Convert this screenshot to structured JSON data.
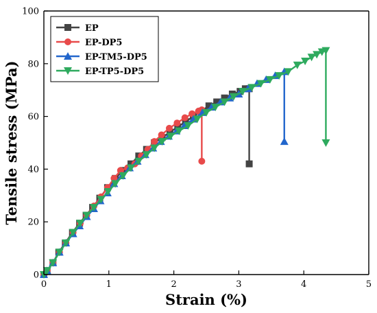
{
  "chart_data": {
    "type": "line",
    "xlabel": "Strain (%)",
    "ylabel": "Tensile stress (MPa)",
    "xlim": [
      0,
      5
    ],
    "ylim": [
      0,
      100
    ],
    "xticks": [
      "0",
      "1",
      "2",
      "3",
      "4",
      "5"
    ],
    "yticks": [
      "0",
      "20",
      "40",
      "60",
      "80",
      "100"
    ],
    "legend_position": "top-left",
    "grid": false,
    "series": [
      {
        "name": "EP",
        "color": "#444444",
        "marker": "square",
        "x": [
          0.0,
          0.05,
          0.14,
          0.23,
          0.33,
          0.44,
          0.55,
          0.65,
          0.75,
          0.86,
          0.98,
          1.1,
          1.22,
          1.34,
          1.46,
          1.58,
          1.7,
          1.82,
          1.94,
          2.06,
          2.18,
          2.3,
          2.42,
          2.54,
          2.66,
          2.78,
          2.9,
          3.02,
          3.1,
          3.16,
          3.16
        ],
        "y": [
          0,
          1.5,
          4.5,
          8.5,
          12,
          16,
          19.5,
          22.5,
          25.5,
          29,
          33,
          36.5,
          39.5,
          42,
          45,
          47.5,
          50,
          52,
          54,
          56,
          58,
          60,
          62,
          64,
          65.5,
          67,
          68.5,
          69.5,
          70.5,
          70.5,
          42
        ]
      },
      {
        "name": "EP-DP5",
        "color": "#e84a4a",
        "marker": "circle",
        "x": [
          0.0,
          0.05,
          0.14,
          0.24,
          0.34,
          0.45,
          0.56,
          0.66,
          0.77,
          0.88,
          0.98,
          1.08,
          1.18,
          1.29,
          1.4,
          1.5,
          1.6,
          1.7,
          1.81,
          1.93,
          2.05,
          2.17,
          2.28,
          2.38,
          2.43,
          2.43
        ],
        "y": [
          0,
          1.5,
          4.5,
          8.5,
          12,
          16,
          19.5,
          22.5,
          26,
          29.5,
          33,
          36.5,
          39.5,
          40.5,
          42,
          45,
          47.5,
          50.5,
          53,
          55.5,
          57.5,
          59.5,
          61,
          62,
          62.5,
          43
        ]
      },
      {
        "name": "EP-TM5-DP5",
        "color": "#2266cc",
        "marker": "triangle-up",
        "x": [
          0.0,
          0.05,
          0.14,
          0.24,
          0.34,
          0.45,
          0.55,
          0.66,
          0.77,
          0.87,
          0.98,
          1.08,
          1.2,
          1.32,
          1.44,
          1.56,
          1.68,
          1.8,
          1.92,
          2.04,
          2.16,
          2.3,
          2.44,
          2.58,
          2.72,
          2.86,
          3.0,
          3.14,
          3.28,
          3.42,
          3.56,
          3.7,
          3.7
        ],
        "y": [
          0,
          1.5,
          4.5,
          8.5,
          12,
          15.5,
          18.5,
          22,
          25,
          28,
          31,
          34.5,
          37.5,
          40.5,
          43,
          45.5,
          48,
          50.5,
          52.5,
          54.5,
          56.5,
          59,
          61.5,
          63.5,
          65.5,
          67,
          68.5,
          70.5,
          72.5,
          74,
          75.5,
          77,
          50.5
        ]
      },
      {
        "name": "EP-TP5-DP5",
        "color": "#2eaa5e",
        "marker": "triangle-down",
        "x": [
          0.0,
          0.05,
          0.14,
          0.24,
          0.34,
          0.45,
          0.56,
          0.66,
          0.77,
          0.88,
          0.99,
          1.1,
          1.22,
          1.34,
          1.46,
          1.58,
          1.7,
          1.82,
          1.95,
          2.08,
          2.22,
          2.36,
          2.5,
          2.64,
          2.78,
          2.92,
          3.06,
          3.2,
          3.34,
          3.48,
          3.62,
          3.76,
          3.9,
          4.02,
          4.12,
          4.2,
          4.28,
          4.34,
          4.34
        ],
        "y": [
          0,
          1.5,
          4.5,
          8.5,
          12,
          16,
          19.5,
          22.5,
          25.5,
          28.5,
          31.5,
          34.5,
          37.5,
          40.5,
          43,
          45.5,
          48,
          50.5,
          52.5,
          54.5,
          56.5,
          59,
          61.5,
          63.5,
          65.5,
          67.5,
          69.5,
          71,
          72.5,
          74,
          75.5,
          77,
          79.5,
          81,
          82.5,
          83.5,
          84.5,
          85,
          50
        ]
      }
    ]
  }
}
